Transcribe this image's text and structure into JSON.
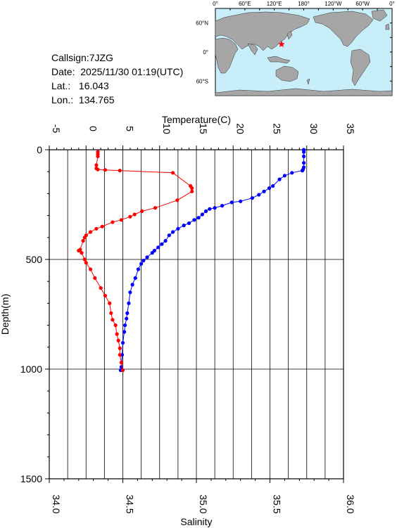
{
  "info": {
    "callsign": "Callsign:7JZG",
    "date": "Date:  2025/11/30 01:19(UTC)",
    "lat": "Lat.:   16.043",
    "lon": "Lon.:  134.765"
  },
  "map": {
    "top_labels": [
      "0°",
      "60°E",
      "120°E",
      "180°",
      "120°W",
      "60°W",
      "0°"
    ],
    "right_labels": [
      "60°N",
      "0°",
      "60°S"
    ],
    "ocean_color": "#c8eefa",
    "land_color": "#a6a6a6",
    "marker_color": "#ff0000",
    "marker_icon": "star-icon",
    "marker_lon": 134.765,
    "marker_lat": 16.043
  },
  "chart_data": {
    "type": "line",
    "ylabel": "Depth(m)",
    "ylim": [
      1500,
      0
    ],
    "yticks": [
      "0",
      "500",
      "1000",
      "1500"
    ],
    "top_axis": {
      "label": "Temperature(C)",
      "range": [
        -5,
        35
      ],
      "ticks": [
        "-5",
        "0",
        "5",
        "10",
        "15",
        "20",
        "25",
        "30",
        "35"
      ]
    },
    "bottom_axis": {
      "label": "Salinity",
      "range": [
        34.0,
        36.0
      ],
      "ticks": [
        "34.0",
        "34.5",
        "35.0",
        "35.5",
        "36.0"
      ]
    },
    "grid": true,
    "series": [
      {
        "color": "#0000ff",
        "axis": "top",
        "points": [
          [
            29.6,
            0
          ],
          [
            29.6,
            10
          ],
          [
            29.6,
            30
          ],
          [
            29.6,
            60
          ],
          [
            29.6,
            80
          ],
          [
            29.5,
            90
          ],
          [
            29.4,
            95
          ],
          [
            28.0,
            105
          ],
          [
            27.0,
            118
          ],
          [
            26.3,
            135
          ],
          [
            25.4,
            165
          ],
          [
            24.9,
            175
          ],
          [
            24.2,
            190
          ],
          [
            23.5,
            205
          ],
          [
            22.6,
            220
          ],
          [
            21.0,
            235
          ],
          [
            19.8,
            240
          ],
          [
            18.5,
            255
          ],
          [
            17.5,
            265
          ],
          [
            16.8,
            270
          ],
          [
            16.3,
            280
          ],
          [
            15.8,
            295
          ],
          [
            15.3,
            310
          ],
          [
            14.7,
            320
          ],
          [
            14.0,
            335
          ],
          [
            13.3,
            345
          ],
          [
            12.5,
            360
          ],
          [
            11.8,
            375
          ],
          [
            11.3,
            390
          ],
          [
            10.8,
            415
          ],
          [
            10.3,
            430
          ],
          [
            9.8,
            445
          ],
          [
            9.3,
            460
          ],
          [
            9.0,
            470
          ],
          [
            8.3,
            490
          ],
          [
            7.8,
            505
          ],
          [
            7.5,
            520
          ],
          [
            7.1,
            545
          ],
          [
            6.7,
            585
          ],
          [
            6.3,
            615
          ],
          [
            6.0,
            650
          ],
          [
            5.8,
            700
          ],
          [
            5.6,
            745
          ],
          [
            5.5,
            770
          ],
          [
            5.3,
            800
          ],
          [
            5.2,
            830
          ],
          [
            5.0,
            880
          ],
          [
            4.9,
            935
          ],
          [
            4.8,
            990
          ],
          [
            4.7,
            1005
          ]
        ]
      },
      {
        "color": "#ff0000",
        "axis": "bottom",
        "points": [
          [
            34.33,
            10
          ],
          [
            34.33,
            20
          ],
          [
            34.33,
            30
          ],
          [
            34.32,
            70
          ],
          [
            34.32,
            85
          ],
          [
            34.33,
            90
          ],
          [
            34.38,
            92
          ],
          [
            34.48,
            95
          ],
          [
            34.84,
            105
          ],
          [
            34.96,
            165
          ],
          [
            34.97,
            175
          ],
          [
            34.97,
            190
          ],
          [
            34.87,
            230
          ],
          [
            34.72,
            265
          ],
          [
            34.63,
            280
          ],
          [
            34.58,
            295
          ],
          [
            34.55,
            305
          ],
          [
            34.49,
            320
          ],
          [
            34.43,
            330
          ],
          [
            34.36,
            350
          ],
          [
            34.32,
            360
          ],
          [
            34.28,
            375
          ],
          [
            34.25,
            390
          ],
          [
            34.24,
            400
          ],
          [
            34.23,
            415
          ],
          [
            34.21,
            455
          ],
          [
            34.2,
            460
          ],
          [
            34.22,
            470
          ],
          [
            34.24,
            500
          ],
          [
            34.25,
            515
          ],
          [
            34.28,
            545
          ],
          [
            34.31,
            585
          ],
          [
            34.35,
            630
          ],
          [
            34.38,
            665
          ],
          [
            34.41,
            700
          ],
          [
            34.42,
            745
          ],
          [
            34.43,
            775
          ],
          [
            34.45,
            800
          ],
          [
            34.46,
            840
          ],
          [
            34.47,
            870
          ],
          [
            34.48,
            905
          ],
          [
            34.48,
            935
          ],
          [
            34.49,
            970
          ],
          [
            34.5,
            1005
          ]
        ]
      }
    ]
  }
}
